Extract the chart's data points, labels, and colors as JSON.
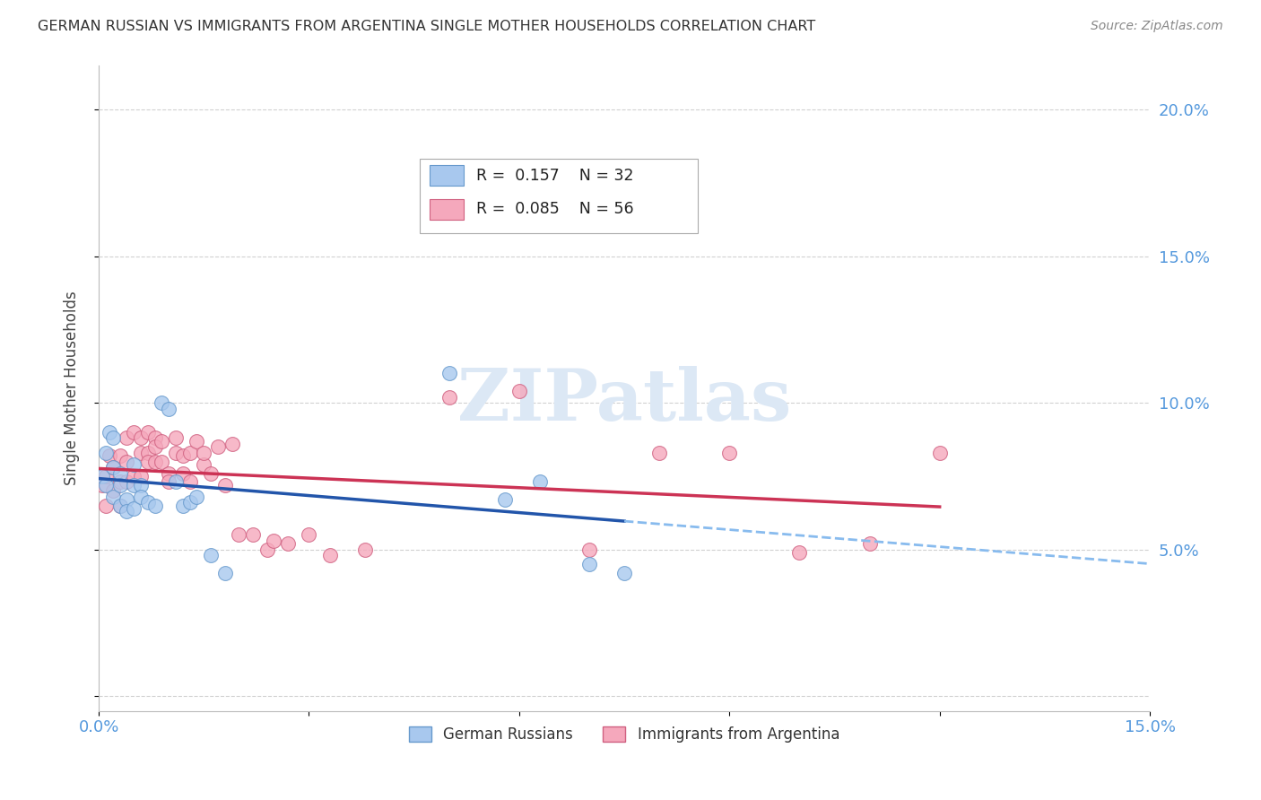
{
  "title": "GERMAN RUSSIAN VS IMMIGRANTS FROM ARGENTINA SINGLE MOTHER HOUSEHOLDS CORRELATION CHART",
  "source": "Source: ZipAtlas.com",
  "ylabel": "Single Mother Households",
  "xlim": [
    0.0,
    0.15
  ],
  "ylim": [
    -0.005,
    0.215
  ],
  "german_russian": {
    "label": "German Russians",
    "color": "#A8C8EE",
    "edge_color": "#6699CC",
    "R": 0.157,
    "N": 32,
    "x": [
      0.0005,
      0.001,
      0.001,
      0.0015,
      0.002,
      0.002,
      0.002,
      0.003,
      0.003,
      0.003,
      0.004,
      0.004,
      0.005,
      0.005,
      0.005,
      0.006,
      0.006,
      0.007,
      0.008,
      0.009,
      0.01,
      0.011,
      0.012,
      0.013,
      0.014,
      0.016,
      0.018,
      0.05,
      0.058,
      0.063,
      0.07,
      0.075
    ],
    "y": [
      0.075,
      0.083,
      0.072,
      0.09,
      0.088,
      0.078,
      0.068,
      0.076,
      0.065,
      0.072,
      0.067,
      0.063,
      0.079,
      0.072,
      0.064,
      0.072,
      0.068,
      0.066,
      0.065,
      0.1,
      0.098,
      0.073,
      0.065,
      0.066,
      0.068,
      0.048,
      0.042,
      0.11,
      0.067,
      0.073,
      0.045,
      0.042
    ]
  },
  "argentina": {
    "label": "Immigrants from Argentina",
    "color": "#F5A8BC",
    "edge_color": "#D06080",
    "R": 0.085,
    "N": 56,
    "x": [
      0.0005,
      0.001,
      0.001,
      0.0015,
      0.002,
      0.002,
      0.003,
      0.003,
      0.003,
      0.004,
      0.004,
      0.004,
      0.005,
      0.005,
      0.006,
      0.006,
      0.006,
      0.007,
      0.007,
      0.007,
      0.008,
      0.008,
      0.008,
      0.009,
      0.009,
      0.01,
      0.01,
      0.011,
      0.011,
      0.012,
      0.012,
      0.013,
      0.013,
      0.014,
      0.015,
      0.015,
      0.016,
      0.017,
      0.018,
      0.019,
      0.02,
      0.022,
      0.024,
      0.025,
      0.027,
      0.03,
      0.033,
      0.038,
      0.05,
      0.06,
      0.07,
      0.08,
      0.09,
      0.1,
      0.11,
      0.12
    ],
    "y": [
      0.072,
      0.075,
      0.065,
      0.082,
      0.078,
      0.07,
      0.082,
      0.073,
      0.065,
      0.088,
      0.08,
      0.073,
      0.09,
      0.075,
      0.088,
      0.083,
      0.075,
      0.09,
      0.083,
      0.08,
      0.088,
      0.085,
      0.08,
      0.087,
      0.08,
      0.076,
      0.073,
      0.088,
      0.083,
      0.082,
      0.076,
      0.073,
      0.083,
      0.087,
      0.079,
      0.083,
      0.076,
      0.085,
      0.072,
      0.086,
      0.055,
      0.055,
      0.05,
      0.053,
      0.052,
      0.055,
      0.048,
      0.05,
      0.102,
      0.104,
      0.05,
      0.083,
      0.083,
      0.049,
      0.052,
      0.083
    ]
  },
  "blue_line_color": "#2255AA",
  "pink_line_color": "#CC3355",
  "dashed_line_color": "#88BBEE",
  "background_color": "#FFFFFF",
  "grid_color": "#CCCCCC",
  "title_color": "#333333",
  "source_color": "#888888",
  "right_axis_label_color": "#5599DD",
  "ylabel_color": "#444444",
  "watermark_color": "#DCE8F5"
}
